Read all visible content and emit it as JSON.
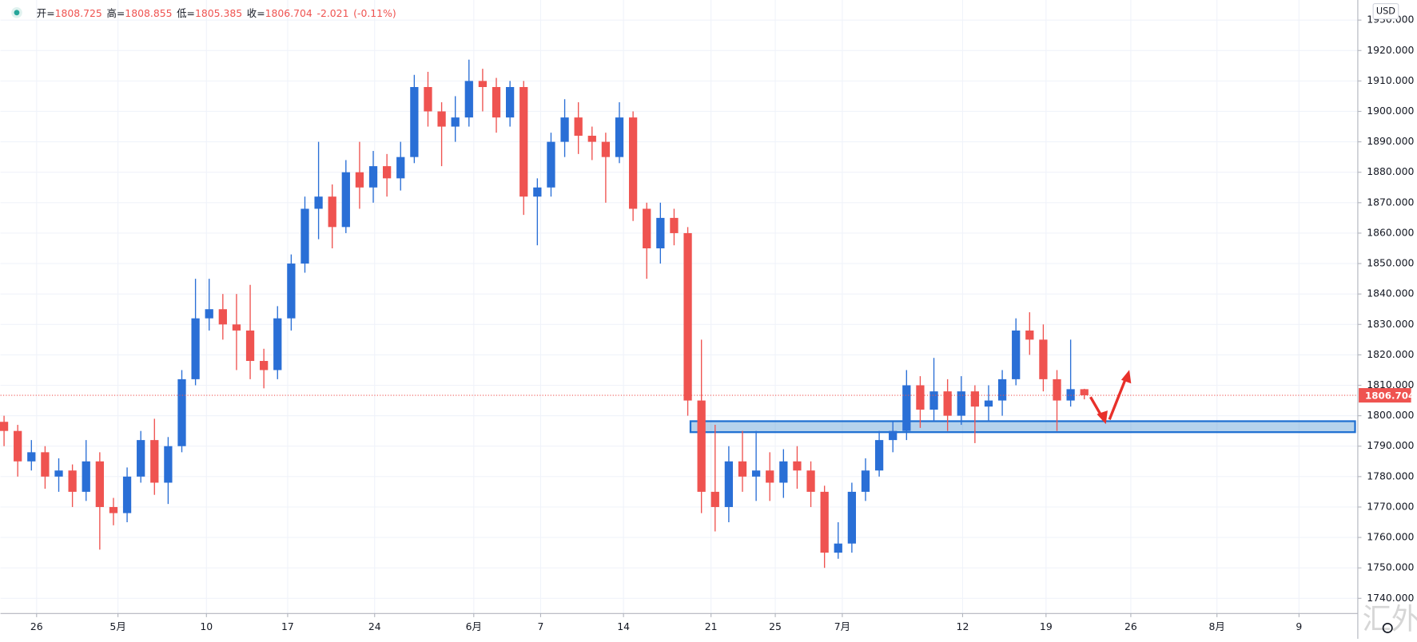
{
  "chart_data": {
    "type": "candlestick",
    "header": {
      "open_label": "开=",
      "high_label": "高=",
      "low_label": "低=",
      "close_label": "收=",
      "change": -2.021,
      "change_pct": "(-0.11%)"
    },
    "currency": "USD",
    "watermark": "汇外网",
    "up_color": "#2a6fd6",
    "down_color": "#ef5350",
    "open": [
      1798,
      1795,
      1785,
      1788,
      1780,
      1782,
      1775,
      1785,
      1770,
      1768,
      1780,
      1792,
      1778,
      1790,
      1812,
      1832,
      1835,
      1830,
      1828,
      1818,
      1815,
      1832,
      1850,
      1868,
      1872,
      1862,
      1880,
      1875,
      1882,
      1878,
      1885,
      1908,
      1900,
      1895,
      1898,
      1910,
      1908,
      1898,
      1908,
      1872,
      1875,
      1890,
      1898,
      1892,
      1890,
      1885,
      1898,
      1868,
      1855,
      1865,
      1860,
      1805,
      1775,
      1770,
      1785,
      1780,
      1782,
      1778,
      1785,
      1782,
      1775,
      1755,
      1758,
      1775,
      1782,
      1792,
      1795,
      1810,
      1802,
      1808,
      1800,
      1808,
      1803,
      1805,
      1812,
      1828,
      1825,
      1812,
      1805,
      1808.725
    ],
    "high": [
      1800,
      1797,
      1792,
      1790,
      1786,
      1784,
      1792,
      1788,
      1773,
      1783,
      1795,
      1799,
      1793,
      1815,
      1845,
      1845,
      1840,
      1840,
      1843,
      1822,
      1836,
      1853,
      1872,
      1890,
      1876,
      1884,
      1890,
      1887,
      1886,
      1890,
      1912,
      1913,
      1903,
      1905,
      1917,
      1914,
      1911,
      1910,
      1910,
      1878,
      1893,
      1904,
      1903,
      1895,
      1893,
      1903,
      1900,
      1870,
      1870,
      1868,
      1862,
      1825,
      1797,
      1790,
      1795,
      1795,
      1788,
      1789,
      1790,
      1785,
      1777,
      1765,
      1778,
      1786,
      1795,
      1798,
      1815,
      1813,
      1819,
      1812,
      1813,
      1810,
      1810,
      1815,
      1832,
      1834,
      1830,
      1815,
      1825,
      1808.855
    ],
    "low": [
      1790,
      1780,
      1782,
      1776,
      1775,
      1770,
      1772,
      1756,
      1764,
      1765,
      1778,
      1774,
      1771,
      1788,
      1810,
      1828,
      1825,
      1815,
      1812,
      1809,
      1812,
      1828,
      1847,
      1858,
      1855,
      1860,
      1868,
      1870,
      1872,
      1874,
      1883,
      1895,
      1882,
      1890,
      1895,
      1900,
      1893,
      1895,
      1866,
      1856,
      1872,
      1885,
      1886,
      1884,
      1870,
      1883,
      1864,
      1845,
      1850,
      1856,
      1800,
      1768,
      1762,
      1765,
      1775,
      1772,
      1772,
      1773,
      1776,
      1770,
      1750,
      1753,
      1755,
      1772,
      1780,
      1788,
      1792,
      1796,
      1798,
      1795,
      1797,
      1791,
      1798,
      1800,
      1810,
      1820,
      1808,
      1795,
      1803,
      1805.385
    ],
    "close": [
      1795,
      1785,
      1788,
      1780,
      1782,
      1775,
      1785,
      1770,
      1768,
      1780,
      1792,
      1778,
      1790,
      1812,
      1832,
      1835,
      1830,
      1828,
      1818,
      1815,
      1832,
      1850,
      1868,
      1872,
      1862,
      1880,
      1875,
      1882,
      1878,
      1885,
      1908,
      1900,
      1895,
      1898,
      1910,
      1908,
      1898,
      1908,
      1872,
      1875,
      1890,
      1898,
      1892,
      1890,
      1885,
      1898,
      1868,
      1855,
      1865,
      1860,
      1805,
      1775,
      1770,
      1785,
      1780,
      1782,
      1778,
      1785,
      1782,
      1775,
      1755,
      1758,
      1775,
      1782,
      1792,
      1795,
      1810,
      1802,
      1808,
      1800,
      1808,
      1803,
      1805,
      1812,
      1828,
      1825,
      1812,
      1805,
      1808.725,
      1806.704
    ],
    "support_zone": {
      "y": [
        1794.6,
        1798.2
      ],
      "x": [
        50.2,
        98.8
      ],
      "color": "#5b9bd5"
    },
    "xlim": [
      -0.26,
      99.0
    ],
    "xticks": [
      {
        "value": 2.38,
        "label": "26"
      },
      {
        "value": 8.33,
        "label": "5月"
      },
      {
        "value": 14.8,
        "label": "10"
      },
      {
        "value": 20.74,
        "label": "17"
      },
      {
        "value": 27.1,
        "label": "24"
      },
      {
        "value": 34.35,
        "label": "6月"
      },
      {
        "value": 39.24,
        "label": "7"
      },
      {
        "value": 45.3,
        "label": "14"
      },
      {
        "value": 51.7,
        "label": "21"
      },
      {
        "value": 56.4,
        "label": "25"
      },
      {
        "value": 61.3,
        "label": "7月"
      },
      {
        "value": 70.1,
        "label": "12"
      },
      {
        "value": 76.2,
        "label": "19"
      },
      {
        "value": 82.4,
        "label": "26"
      },
      {
        "value": 88.7,
        "label": "8月"
      },
      {
        "value": 94.7,
        "label": "9"
      }
    ],
    "ylim": [
      1735,
      1936.6
    ],
    "yticks": [
      {
        "value": 1740,
        "label": "1740.000"
      },
      {
        "value": 1750,
        "label": "1750.000"
      },
      {
        "value": 1760,
        "label": "1760.000"
      },
      {
        "value": 1770,
        "label": "1770.000"
      },
      {
        "value": 1780,
        "label": "1780.000"
      },
      {
        "value": 1790,
        "label": "1790.000"
      },
      {
        "value": 1800,
        "label": "1800.000"
      },
      {
        "value": 1810,
        "label": "1810.000"
      },
      {
        "value": 1820,
        "label": "1820.000"
      },
      {
        "value": 1830,
        "label": "1830.000"
      },
      {
        "value": 1840,
        "label": "1840.000"
      },
      {
        "value": 1850,
        "label": "1850.000"
      },
      {
        "value": 1860,
        "label": "1860.000"
      },
      {
        "value": 1870,
        "label": "1870.000"
      },
      {
        "value": 1880,
        "label": "1880.000"
      },
      {
        "value": 1890,
        "label": "1890.000"
      },
      {
        "value": 1900,
        "label": "1900.000"
      },
      {
        "value": 1910,
        "label": "1910.000"
      },
      {
        "value": 1920,
        "label": "1920.000"
      },
      {
        "value": 1930,
        "label": "1930.000"
      }
    ],
    "grid": true
  }
}
